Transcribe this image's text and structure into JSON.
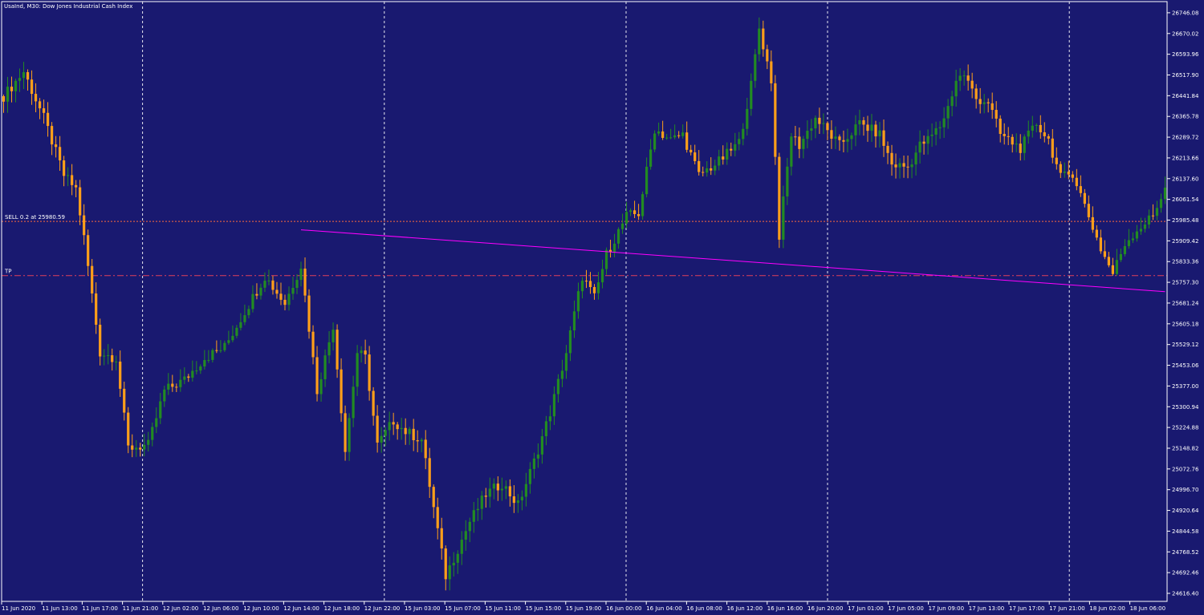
{
  "chart_data": {
    "type": "candlestick",
    "title": "UsaInd, M30:  Dow Jones Industrial Cash Index",
    "y_ticks": [
      "26746.08",
      "26670.02",
      "26593.96",
      "26517.90",
      "26441.84",
      "26365.78",
      "26289.72",
      "26213.66",
      "26137.60",
      "26061.54",
      "25985.48",
      "25909.42",
      "25833.36",
      "25757.30",
      "25681.24",
      "25605.18",
      "25529.12",
      "25453.06",
      "25377.00",
      "25300.94",
      "25224.88",
      "25148.82",
      "25072.76",
      "24996.70",
      "24920.64",
      "24844.58",
      "24768.52",
      "24692.46",
      "24616.40"
    ],
    "ylim": [
      24587,
      26787
    ],
    "x_labels": [
      "11 Jun 2020",
      "11 Jun 13:00",
      "11 Jun 17:00",
      "11 Jun 21:00",
      "12 Jun 02:00",
      "12 Jun 06:00",
      "12 Jun 10:00",
      "12 Jun 14:00",
      "12 Jun 18:00",
      "12 Jun 22:00",
      "15 Jun 03:00",
      "15 Jun 07:00",
      "15 Jun 11:00",
      "15 Jun 15:00",
      "15 Jun 19:00",
      "16 Jun 00:00",
      "16 Jun 04:00",
      "16 Jun 08:00",
      "16 Jun 12:00",
      "16 Jun 16:00",
      "16 Jun 20:00",
      "17 Jun 01:00",
      "17 Jun 05:00",
      "17 Jun 09:00",
      "17 Jun 13:00",
      "17 Jun 17:00",
      "17 Jun 21:00",
      "18 Jun 02:00",
      "18 Jun 06:00"
    ],
    "day_separator_label_index": [
      3,
      9,
      15,
      20,
      26
    ],
    "levels": [
      {
        "label": "SELL 0.2  at 25980.59",
        "value": 25980.59,
        "color": "#ff6a3d",
        "style": "dotted"
      },
      {
        "label": "TP",
        "value": 25782,
        "color": "#e0405a",
        "style": "dashdot"
      }
    ],
    "trendline": {
      "from_bar": 74,
      "from_value": 25950,
      "to_bar": 289,
      "to_value": 25723,
      "color": "#ff00ff"
    },
    "bull_color": "#228b22",
    "bear_color": "#ff9f1a",
    "grid": true,
    "close_anchors": [
      [
        0,
        26440
      ],
      [
        5,
        26530
      ],
      [
        10,
        26360
      ],
      [
        15,
        26150
      ],
      [
        18,
        26100
      ],
      [
        20,
        25920
      ],
      [
        24,
        25500
      ],
      [
        28,
        25480
      ],
      [
        31,
        25150
      ],
      [
        36,
        25160
      ],
      [
        40,
        25360
      ],
      [
        45,
        25400
      ],
      [
        50,
        25480
      ],
      [
        55,
        25520
      ],
      [
        60,
        25650
      ],
      [
        65,
        25780
      ],
      [
        70,
        25680
      ],
      [
        74,
        25820
      ],
      [
        78,
        25360
      ],
      [
        82,
        25600
      ],
      [
        85,
        25140
      ],
      [
        88,
        25500
      ],
      [
        90,
        25480
      ],
      [
        93,
        25160
      ],
      [
        97,
        25250
      ],
      [
        100,
        25210
      ],
      [
        104,
        25180
      ],
      [
        110,
        24680
      ],
      [
        116,
        24880
      ],
      [
        120,
        24980
      ],
      [
        124,
        25020
      ],
      [
        128,
        24940
      ],
      [
        132,
        25100
      ],
      [
        136,
        25280
      ],
      [
        140,
        25500
      ],
      [
        144,
        25780
      ],
      [
        147,
        25700
      ],
      [
        150,
        25860
      ],
      [
        155,
        26000
      ],
      [
        158,
        26010
      ],
      [
        162,
        26320
      ],
      [
        166,
        26280
      ],
      [
        169,
        26300
      ],
      [
        173,
        26150
      ],
      [
        178,
        26200
      ],
      [
        183,
        26270
      ],
      [
        186,
        26480
      ],
      [
        188,
        26690
      ],
      [
        191,
        26500
      ],
      [
        193,
        25930
      ],
      [
        196,
        26300
      ],
      [
        198,
        26260
      ],
      [
        202,
        26360
      ],
      [
        208,
        26260
      ],
      [
        213,
        26340
      ],
      [
        218,
        26300
      ],
      [
        221,
        26190
      ],
      [
        225,
        26180
      ],
      [
        228,
        26260
      ],
      [
        230,
        26280
      ],
      [
        233,
        26330
      ],
      [
        235,
        26400
      ],
      [
        237,
        26500
      ],
      [
        239,
        26520
      ],
      [
        242,
        26430
      ],
      [
        245,
        26420
      ],
      [
        248,
        26300
      ],
      [
        253,
        26250
      ],
      [
        257,
        26340
      ],
      [
        260,
        26280
      ],
      [
        263,
        26140
      ],
      [
        266,
        26160
      ],
      [
        270,
        26000
      ],
      [
        273,
        25880
      ],
      [
        276,
        25790
      ],
      [
        279,
        25900
      ],
      [
        282,
        25950
      ],
      [
        286,
        26000
      ],
      [
        289,
        26110
      ]
    ]
  }
}
